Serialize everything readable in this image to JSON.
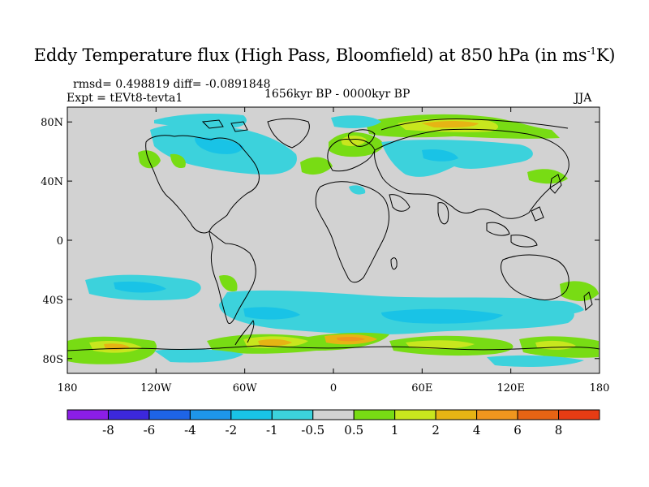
{
  "title": {
    "main_prefix": "Eddy Temperature flux (High Pass, Bloomfield) at 850 hPa (in ms",
    "sup": "-1",
    "main_suffix": "K)"
  },
  "stats_line": "rmsd= 0.498819 diff= -0.0891848",
  "expt_line": "Expt = tEVt8-tevta1",
  "period_line": "1656kyr BP - 0000kyr BP",
  "season": "JJA",
  "axes": {
    "lon_ticks": [
      "180",
      "120W",
      "60W",
      "0",
      "60E",
      "120E",
      "180"
    ],
    "lat_ticks": [
      "80N",
      "40N",
      "0",
      "40S",
      "80S"
    ]
  },
  "colorbar": {
    "labels": [
      "-8",
      "-6",
      "-4",
      "-2",
      "-1",
      "-0.5",
      "0.5",
      "1",
      "2",
      "4",
      "6",
      "8"
    ],
    "colors": [
      "#8b1ee6",
      "#3c28dc",
      "#1e64e6",
      "#1e96ea",
      "#19c3e6",
      "#3cd2dc",
      "#d2d2d2",
      "#78dc14",
      "#c8e61e",
      "#e6b414",
      "#f0961e",
      "#e66414",
      "#e63c14"
    ]
  },
  "palette": {
    "background_field": "#d2d2d2",
    "coast": "#000000"
  }
}
